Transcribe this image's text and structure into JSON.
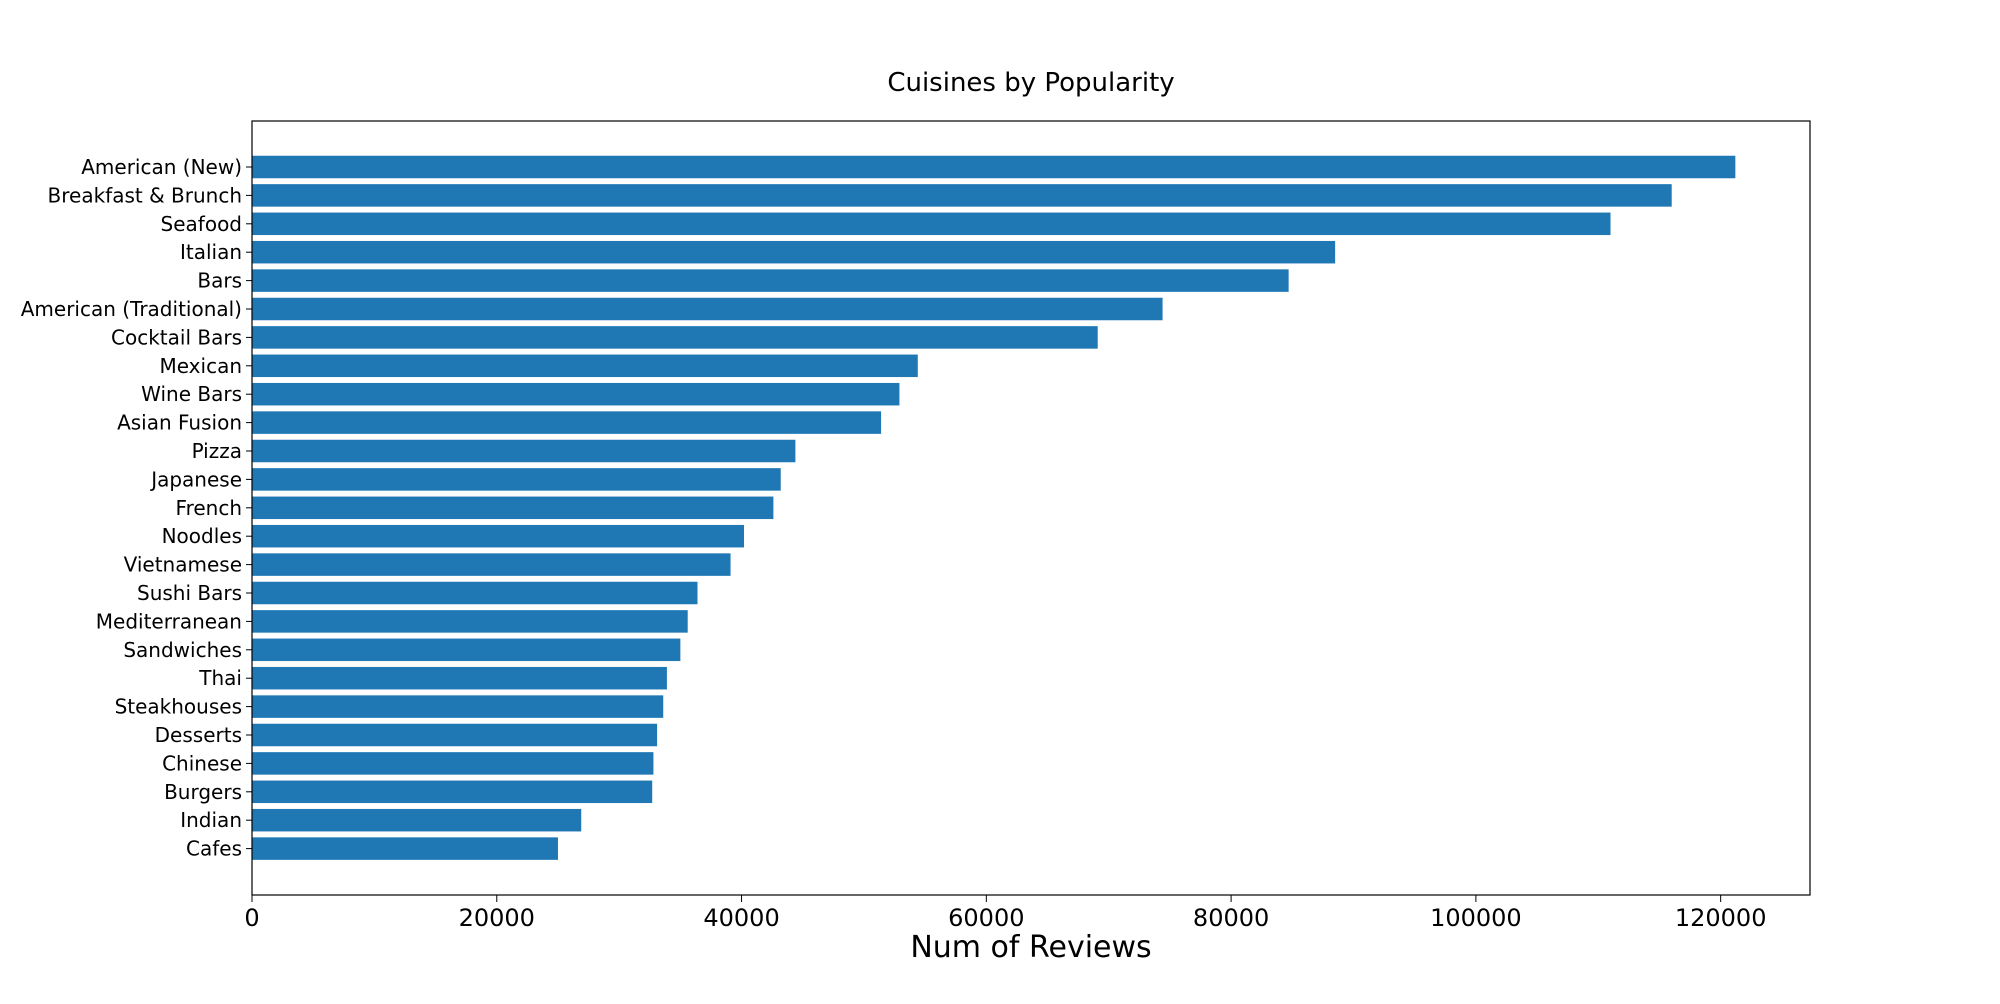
{
  "chart_data": {
    "type": "bar",
    "orientation": "horizontal",
    "title": "Cuisines by Popularity",
    "xlabel": "Num of Reviews",
    "ylabel": "",
    "xlim": [
      0,
      127300
    ],
    "x_ticks": [
      0,
      20000,
      40000,
      60000,
      80000,
      100000,
      120000
    ],
    "x_tick_labels": [
      "0",
      "20000",
      "40000",
      "60000",
      "80000",
      "100000",
      "120000"
    ],
    "grid": false,
    "bar_color": "#1f77b4",
    "categories": [
      "American (New)",
      "Breakfast & Brunch",
      "Seafood",
      "Italian",
      "Bars",
      "American (Traditional)",
      "Cocktail Bars",
      "Mexican",
      "Wine Bars",
      "Asian Fusion",
      "Pizza",
      "Japanese",
      "French",
      "Noodles",
      "Vietnamese",
      "Sushi Bars",
      "Mediterranean",
      "Sandwiches",
      "Thai",
      "Steakhouses",
      "Desserts",
      "Chinese",
      "Burgers",
      "Indian",
      "Cafes"
    ],
    "values": [
      121200,
      116000,
      111000,
      88500,
      84700,
      74400,
      69100,
      54400,
      52900,
      51400,
      44400,
      43200,
      42600,
      40200,
      39100,
      36400,
      35600,
      35000,
      33900,
      33600,
      33100,
      32800,
      32700,
      26900,
      25000
    ]
  }
}
